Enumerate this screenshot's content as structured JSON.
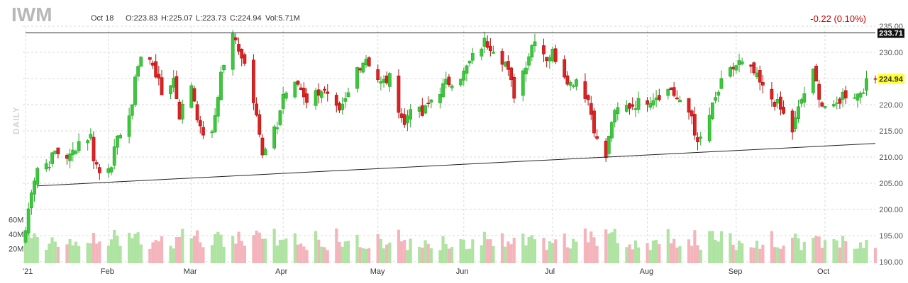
{
  "header": {
    "ticker": "IWM",
    "date": "Oct 18",
    "open": "O:223.83",
    "high": "H:225.07",
    "low": "L:223.73",
    "close": "C:224.94",
    "volume": "Vol:5.71M",
    "change": "-0.22 (0.10%)",
    "interval": "DAILY"
  },
  "colors": {
    "up": "#2aa52a",
    "up_fill": "#3cc83c",
    "down": "#aa1111",
    "down_fill": "#dd2222",
    "vol_up": "#aee3a2",
    "vol_down": "#f4b4bb",
    "grid": "#d9d9d9",
    "last_price_bg": "#ffff33",
    "resistance_bg": "#111111"
  },
  "chart_data": {
    "type": "candlestick",
    "title": "IWM",
    "price_ylim": [
      190,
      235
    ],
    "price_ticks": [
      "235.00",
      "230.00",
      "225.00",
      "220.00",
      "215.00",
      "210.00",
      "205.00",
      "200.00",
      "195.00",
      "190.00"
    ],
    "volume_ticks": [
      "60M",
      "40M",
      "20M"
    ],
    "volume_max_m": 70,
    "x_labels": [
      "'21",
      "Feb",
      "Mar",
      "Apr",
      "May",
      "Jun",
      "Jul",
      "Aug",
      "Sep",
      "Oct"
    ],
    "x_label_dates": [
      "2021-01-04",
      "2021-02-01",
      "2021-03-01",
      "2021-04-01",
      "2021-05-03",
      "2021-06-01",
      "2021-07-01",
      "2021-08-02",
      "2021-09-01",
      "2021-10-01"
    ],
    "date_range": [
      "2021-01-04",
      "2021-10-18"
    ],
    "last_price": "224.94",
    "resistance_label": "233.71",
    "resistance_level": 233.71,
    "trendline": {
      "start": [
        "2021-01-08",
        204.5
      ],
      "end": [
        "2021-10-18",
        212.6
      ]
    },
    "waypoints": [
      [
        "2021-01-04",
        196
      ],
      [
        "2021-01-06",
        204
      ],
      [
        "2021-01-08",
        208
      ],
      [
        "2021-01-12",
        209
      ],
      [
        "2021-01-14",
        211
      ],
      [
        "2021-01-19",
        210
      ],
      [
        "2021-01-22",
        213
      ],
      [
        "2021-01-26",
        214
      ],
      [
        "2021-01-27",
        210
      ],
      [
        "2021-01-29",
        207
      ],
      [
        "2021-02-02",
        209
      ],
      [
        "2021-02-05",
        215
      ],
      [
        "2021-02-09",
        219
      ],
      [
        "2021-02-10",
        226
      ],
      [
        "2021-02-12",
        229
      ],
      [
        "2021-02-16",
        228
      ],
      [
        "2021-02-19",
        222
      ],
      [
        "2021-02-23",
        225
      ],
      [
        "2021-02-25",
        218
      ],
      [
        "2021-03-01",
        224
      ],
      [
        "2021-03-04",
        215
      ],
      [
        "2021-03-08",
        214
      ],
      [
        "2021-03-11",
        226
      ],
      [
        "2021-03-15",
        233
      ],
      [
        "2021-03-17",
        231
      ],
      [
        "2021-03-19",
        228
      ],
      [
        "2021-03-23",
        219
      ],
      [
        "2021-03-25",
        210
      ],
      [
        "2021-03-30",
        216
      ],
      [
        "2021-04-01",
        222
      ],
      [
        "2021-04-06",
        224
      ],
      [
        "2021-04-09",
        221
      ],
      [
        "2021-04-14",
        223
      ],
      [
        "2021-04-20",
        218
      ],
      [
        "2021-04-23",
        222
      ],
      [
        "2021-04-26",
        227
      ],
      [
        "2021-04-29",
        229
      ],
      [
        "2021-05-04",
        224
      ],
      [
        "2021-05-07",
        225
      ],
      [
        "2021-05-12",
        216
      ],
      [
        "2021-05-14",
        220
      ],
      [
        "2021-05-18",
        218
      ],
      [
        "2021-05-21",
        221
      ],
      [
        "2021-05-26",
        224
      ],
      [
        "2021-06-01",
        226
      ],
      [
        "2021-06-04",
        229
      ],
      [
        "2021-06-08",
        232
      ],
      [
        "2021-06-11",
        231
      ],
      [
        "2021-06-15",
        228
      ],
      [
        "2021-06-18",
        222
      ],
      [
        "2021-06-22",
        228
      ],
      [
        "2021-06-25",
        233
      ],
      [
        "2021-06-29",
        229
      ],
      [
        "2021-07-01",
        230
      ],
      [
        "2021-07-07",
        224
      ],
      [
        "2021-07-09",
        225
      ],
      [
        "2021-07-13",
        221
      ],
      [
        "2021-07-16",
        213
      ],
      [
        "2021-07-19",
        210
      ],
      [
        "2021-07-21",
        217
      ],
      [
        "2021-07-23",
        219
      ],
      [
        "2021-07-28",
        220
      ],
      [
        "2021-08-02",
        221
      ],
      [
        "2021-08-06",
        222
      ],
      [
        "2021-08-10",
        223
      ],
      [
        "2021-08-13",
        220
      ],
      [
        "2021-08-17",
        218
      ],
      [
        "2021-08-19",
        212
      ],
      [
        "2021-08-23",
        218
      ],
      [
        "2021-08-27",
        224
      ],
      [
        "2021-08-31",
        227
      ],
      [
        "2021-09-02",
        228
      ],
      [
        "2021-09-07",
        226
      ],
      [
        "2021-09-10",
        223
      ],
      [
        "2021-09-15",
        220
      ],
      [
        "2021-09-20",
        215
      ],
      [
        "2021-09-23",
        221
      ],
      [
        "2021-09-27",
        226
      ],
      [
        "2021-09-30",
        220
      ],
      [
        "2021-10-04",
        219
      ],
      [
        "2021-10-07",
        222
      ],
      [
        "2021-10-12",
        222
      ],
      [
        "2021-10-15",
        224
      ],
      [
        "2021-10-18",
        224.94
      ]
    ]
  }
}
